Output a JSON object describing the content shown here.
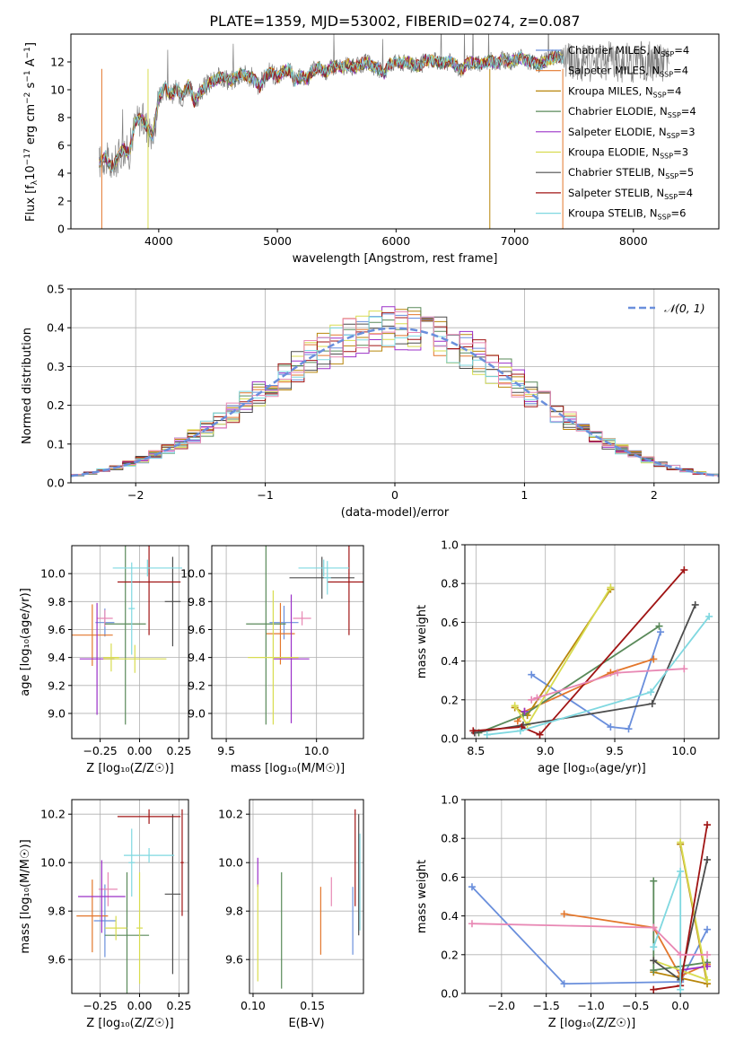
{
  "figure_title": "PLATE=1359, MJD=53002, FIBERID=0274, z=0.087",
  "colors": {
    "Chabrier MILES": "#6a8fdc",
    "Salpeter MILES": "#e3772c",
    "Kroupa MILES": "#b8860b",
    "Chabrier ELODIE": "#5a8a5a",
    "Salpeter ELODIE": "#9b30c8",
    "Kroupa ELODIE": "#d8dc50",
    "Chabrier STELIB": "#4d4d4d",
    "Salpeter STELIB": "#a01414",
    "Kroupa STELIB": "#7fd8e0",
    "pink": "#e888b4",
    "data": "#808080",
    "gauss": "#6a8fdc"
  },
  "chart_data": [
    {
      "id": "spectrum",
      "type": "line",
      "xlabel": "wavelength [Angstrom, rest frame]",
      "ylabel": "Flux [f",
      "ylabel_sub": "λ",
      "ylabel_rest": "10",
      "ylabel_sup1": "−17",
      "ylabel_rest2": " erg cm",
      "ylabel_sup2": "−2",
      "ylabel_rest3": " s",
      "ylabel_sup3": "−1",
      "ylabel_rest4": " A",
      "ylabel_sup4": "−1",
      "ylabel_end": "]",
      "xlim": [
        3260,
        8720
      ],
      "ylim": [
        0,
        14
      ],
      "xticks": [
        4000,
        5000,
        6000,
        7000,
        8000
      ],
      "yticks": [
        0,
        2,
        4,
        6,
        8,
        10,
        12
      ],
      "legend": [
        {
          "name": "Chabrier MILES",
          "n": "4"
        },
        {
          "name": "Salpeter MILES",
          "n": "4"
        },
        {
          "name": "Kroupa MILES",
          "n": "4"
        },
        {
          "name": "Chabrier ELODIE",
          "n": "4"
        },
        {
          "name": "Salpeter ELODIE",
          "n": "3"
        },
        {
          "name": "Kroupa ELODIE",
          "n": "3"
        },
        {
          "name": "Chabrier STELIB",
          "n": "5"
        },
        {
          "name": "Salpeter STELIB",
          "n": "4"
        },
        {
          "name": "Kroupa STELIB",
          "n": "6"
        }
      ],
      "legend_placement": "upper-right",
      "spectrum_points": [
        [
          3500,
          4.8
        ],
        [
          3550,
          5.2
        ],
        [
          3600,
          4.4
        ],
        [
          3650,
          5.0
        ],
        [
          3700,
          5.8
        ],
        [
          3750,
          5.4
        ],
        [
          3800,
          7.6
        ],
        [
          3850,
          8.0
        ],
        [
          3900,
          7.4
        ],
        [
          3950,
          6.6
        ],
        [
          4000,
          9.4
        ],
        [
          4050,
          10.2
        ],
        [
          4100,
          9.6
        ],
        [
          4150,
          10.0
        ],
        [
          4200,
          9.5
        ],
        [
          4250,
          10.4
        ],
        [
          4300,
          9.1
        ],
        [
          4350,
          9.8
        ],
        [
          4400,
          10.3
        ],
        [
          4450,
          10.6
        ],
        [
          4500,
          10.8
        ],
        [
          4550,
          11.0
        ],
        [
          4600,
          10.6
        ],
        [
          4650,
          10.9
        ],
        [
          4700,
          11.2
        ],
        [
          4750,
          11.0
        ],
        [
          4800,
          10.8
        ],
        [
          4850,
          10.2
        ],
        [
          4900,
          11.0
        ],
        [
          4950,
          11.3
        ],
        [
          5000,
          10.9
        ],
        [
          5050,
          11.3
        ],
        [
          5100,
          11.5
        ],
        [
          5150,
          10.6
        ],
        [
          5200,
          11.0
        ],
        [
          5250,
          10.8
        ],
        [
          5300,
          11.4
        ],
        [
          5350,
          11.6
        ],
        [
          5400,
          11.2
        ],
        [
          5450,
          11.6
        ],
        [
          5500,
          11.7
        ],
        [
          5550,
          11.6
        ],
        [
          5600,
          11.8
        ],
        [
          5650,
          11.6
        ],
        [
          5700,
          11.8
        ],
        [
          5750,
          12.0
        ],
        [
          5800,
          11.7
        ],
        [
          5850,
          11.5
        ],
        [
          5900,
          11.2
        ],
        [
          5950,
          11.9
        ],
        [
          6000,
          12.0
        ],
        [
          6050,
          11.9
        ],
        [
          6100,
          12.0
        ],
        [
          6150,
          11.8
        ],
        [
          6200,
          11.7
        ],
        [
          6250,
          12.1
        ],
        [
          6300,
          12.1
        ],
        [
          6350,
          12.0
        ],
        [
          6400,
          11.9
        ],
        [
          6450,
          12.0
        ],
        [
          6500,
          11.8
        ],
        [
          6550,
          11.4
        ],
        [
          6600,
          11.9
        ],
        [
          6650,
          12.0
        ],
        [
          6700,
          11.8
        ],
        [
          6750,
          12.0
        ],
        [
          6800,
          12.1
        ],
        [
          6850,
          11.9
        ],
        [
          6900,
          12.2
        ],
        [
          6950,
          12.0
        ],
        [
          7000,
          12.1
        ],
        [
          7050,
          12.3
        ],
        [
          7100,
          12.1
        ],
        [
          7150,
          12.0
        ],
        [
          7200,
          11.8
        ],
        [
          7250,
          12.0
        ],
        [
          7300,
          12.2
        ],
        [
          7350,
          12.4
        ],
        [
          7400,
          12.3
        ]
      ]
    },
    {
      "id": "residuals",
      "type": "histogram",
      "xlabel": "(data-model)/error",
      "ylabel": "Normed distribution",
      "xlim": [
        -2.5,
        2.5
      ],
      "ylim": [
        0,
        0.5
      ],
      "xticks": [
        -2,
        -1,
        0,
        1,
        2
      ],
      "xticklabels": [
        "−2",
        "−1",
        "0",
        "1",
        "2"
      ],
      "yticks": [
        0.0,
        0.1,
        0.2,
        0.3,
        0.4,
        0.5
      ],
      "yticklabels": [
        "0.0",
        "0.1",
        "0.2",
        "0.3",
        "0.4",
        "0.5"
      ],
      "legend": [
        {
          "name": "𝒩(0, 1)"
        }
      ],
      "legend_placement": "upper-right",
      "bin_width": 0.1
    },
    {
      "id": "age-vs-Z",
      "type": "errorbar",
      "xlabel": "Z [log₁₀(Z/Z☉)]",
      "ylabel": "age  [log₁₀(age/yr)]",
      "xlim": [
        -0.43,
        0.31
      ],
      "ylim": [
        8.82,
        10.2
      ],
      "xticks": [
        -0.25,
        0.0,
        0.25
      ],
      "xticklabels": [
        "−0.25",
        "0.00",
        "0.25"
      ],
      "yticks": [
        9.0,
        9.2,
        9.4,
        9.6,
        9.8,
        10.0
      ],
      "yticklabels": [
        "9.0",
        "9.2",
        "9.4",
        "9.6",
        "9.8",
        "10.0"
      ]
    },
    {
      "id": "age-vs-mass",
      "type": "errorbar",
      "xlabel": "mass [log₁₀(M/M☉)]",
      "ylim": [
        8.82,
        10.2
      ],
      "xlim": [
        9.42,
        10.26
      ],
      "xticks": [
        9.5,
        10.0
      ],
      "xticklabels": [
        "9.5",
        "10.0"
      ],
      "yticks": [
        9.0,
        9.2,
        9.4,
        9.6,
        9.8,
        10.0
      ],
      "yticklabels": [
        "9.0",
        "9.2",
        "9.4",
        "9.6",
        "9.8",
        "10.0"
      ]
    },
    {
      "id": "weight-vs-age",
      "type": "line",
      "xlabel": "age  [log₁₀(age/yr)]",
      "ylabel": "mass weight",
      "xlim": [
        8.42,
        10.25
      ],
      "ylim": [
        0,
        1
      ],
      "xticks": [
        8.5,
        9.0,
        9.5,
        10.0
      ],
      "xticklabels": [
        "8.5",
        "9.0",
        "9.5",
        "10.0"
      ],
      "yticks": [
        0,
        0.2,
        0.4,
        0.6,
        0.8,
        1.0
      ],
      "yticklabels": [
        "0.0",
        "0.2",
        "0.4",
        "0.6",
        "0.8",
        "1.0"
      ]
    },
    {
      "id": "mass-vs-Z",
      "type": "errorbar",
      "xlabel": "Z [log₁₀(Z/Z☉)]",
      "ylabel": "mass [log₁₀(M/M☉)]",
      "xlim": [
        -0.43,
        0.31
      ],
      "ylim": [
        9.46,
        10.26
      ],
      "xticks": [
        -0.25,
        0.0,
        0.25
      ],
      "xticklabels": [
        "−0.25",
        "0.00",
        "0.25"
      ],
      "yticks": [
        9.6,
        9.8,
        10.0,
        10.2
      ],
      "yticklabels": [
        "9.6",
        "9.8",
        "10.0",
        "10.2"
      ]
    },
    {
      "id": "mass-vs-ebv",
      "type": "errorbar",
      "xlabel": "E(B-V)",
      "xlim": [
        0.097,
        0.193
      ],
      "ylim": [
        9.46,
        10.26
      ],
      "xticks": [
        0.1,
        0.15
      ],
      "xticklabels": [
        "0.10",
        "0.15"
      ],
      "yticks": [
        9.6,
        9.8,
        10.0,
        10.2
      ],
      "yticklabels": [
        "9.6",
        "9.8",
        "10.0",
        "10.2"
      ]
    },
    {
      "id": "weight-vs-Z",
      "type": "line",
      "xlabel": "Z [log₁₀(Z/Z☉)]",
      "ylabel": "mass weight",
      "xlim": [
        -2.41,
        0.43
      ],
      "ylim": [
        0,
        1
      ],
      "xticks": [
        -2.0,
        -1.5,
        -1.0,
        -0.5,
        0.0
      ],
      "xticklabels": [
        "−2.0",
        "−1.5",
        "−1.0",
        "−0.5",
        "0.0"
      ],
      "yticks": [
        0,
        0.2,
        0.4,
        0.6,
        0.8,
        1.0
      ],
      "yticklabels": [
        "0.0",
        "0.2",
        "0.4",
        "0.6",
        "0.8",
        "1.0"
      ]
    }
  ],
  "errorbars_age_Z": [
    {
      "c": "Chabrier MILES",
      "x": -0.22,
      "xe": 0.06,
      "y": 9.65,
      "ye": 0.1
    },
    {
      "c": "Salpeter MILES",
      "x": -0.3,
      "xe": 0.13,
      "y": 9.56,
      "ye": 0.22
    },
    {
      "c": "pink",
      "x": -0.22,
      "xe": 0.05,
      "y": 9.68,
      "ye": 0.06
    },
    {
      "c": "Chabrier ELODIE",
      "x": -0.09,
      "xe": 0.13,
      "y": 9.64,
      "ye": 0.72
    },
    {
      "c": "Salpeter ELODIE",
      "x": -0.27,
      "xe": 0.11,
      "y": 9.39,
      "ye": 0.4
    },
    {
      "c": "Kroupa ELODIE",
      "x": -0.18,
      "xe": 0.05,
      "y": 9.4,
      "ye": 0.1
    },
    {
      "c": "Kroupa ELODIE",
      "x": -0.03,
      "xe": 0.2,
      "y": 9.39,
      "ye": 0.1
    },
    {
      "c": "Chabrier STELIB",
      "x": 0.21,
      "xe": 0.05,
      "y": 9.8,
      "ye": 0.32
    },
    {
      "c": "Salpeter STELIB",
      "x": 0.06,
      "xe": 0.2,
      "y": 9.94,
      "ye": 0.38
    },
    {
      "c": "Kroupa STELIB",
      "x": 0.05,
      "xe": 0.22,
      "y": 10.04,
      "ye": 0.06
    },
    {
      "c": "Kroupa STELIB",
      "x": -0.05,
      "xe": 0.02,
      "y": 9.75,
      "ye": 0.33
    }
  ],
  "errorbars_age_mass": [
    {
      "c": "Chabrier MILES",
      "x": 9.82,
      "xe": 0.08,
      "y": 9.65,
      "ye": 0.12
    },
    {
      "c": "Salpeter MILES",
      "x": 9.8,
      "xe": 0.08,
      "y": 9.57,
      "ye": 0.22
    },
    {
      "c": "pink",
      "x": 9.92,
      "xe": 0.05,
      "y": 9.68,
      "ye": 0.05
    },
    {
      "c": "Chabrier ELODIE",
      "x": 9.72,
      "xe": 0.11,
      "y": 9.64,
      "ye": 0.72
    },
    {
      "c": "Salpeter ELODIE",
      "x": 9.86,
      "xe": 0.1,
      "y": 9.39,
      "ye": 0.46
    },
    {
      "c": "Kroupa ELODIE",
      "x": 9.76,
      "xe": 0.14,
      "y": 9.4,
      "ye": 0.48
    },
    {
      "c": "Chabrier STELIB",
      "x": 10.03,
      "xe": 0.18,
      "y": 9.97,
      "ye": 0.15
    },
    {
      "c": "Salpeter STELIB",
      "x": 10.18,
      "xe": 0.12,
      "y": 9.94,
      "ye": 0.38
    },
    {
      "c": "Kroupa STELIB",
      "x": 10.04,
      "xe": 0.14,
      "y": 10.04,
      "ye": 0.06
    },
    {
      "c": "Kroupa STELIB",
      "x": 10.06,
      "xe": 0.02,
      "y": 9.97,
      "ye": 0.12
    }
  ],
  "weights_vs_age": [
    {
      "c": "Chabrier MILES",
      "pts": [
        [
          8.9,
          0.33
        ],
        [
          9.47,
          0.06
        ],
        [
          9.6,
          0.05
        ],
        [
          9.83,
          0.55
        ]
      ]
    },
    {
      "c": "Salpeter MILES",
      "pts": [
        [
          8.8,
          0.09
        ],
        [
          8.85,
          0.14
        ],
        [
          9.47,
          0.34
        ],
        [
          9.78,
          0.41
        ]
      ]
    },
    {
      "c": "Kroupa MILES",
      "pts": [
        [
          8.78,
          0.16
        ],
        [
          8.87,
          0.12
        ],
        [
          9.47,
          0.77
        ]
      ]
    },
    {
      "c": "Chabrier ELODIE",
      "pts": [
        [
          8.52,
          0.03
        ],
        [
          8.84,
          0.12
        ],
        [
          9.82,
          0.58
        ]
      ]
    },
    {
      "c": "Salpeter ELODIE",
      "pts": [
        [
          8.85,
          0.14
        ]
      ]
    },
    {
      "c": "Kroupa ELODIE",
      "pts": [
        [
          8.78,
          0.17
        ],
        [
          8.87,
          0.07
        ],
        [
          9.47,
          0.78
        ]
      ]
    },
    {
      "c": "Chabrier STELIB",
      "pts": [
        [
          8.49,
          0.03
        ],
        [
          8.84,
          0.07
        ],
        [
          9.77,
          0.18
        ],
        [
          10.08,
          0.69
        ]
      ]
    },
    {
      "c": "Salpeter STELIB",
      "pts": [
        [
          8.48,
          0.04
        ],
        [
          8.83,
          0.06
        ],
        [
          8.96,
          0.02
        ],
        [
          10.0,
          0.87
        ]
      ]
    },
    {
      "c": "Kroupa STELIB",
      "pts": [
        [
          8.58,
          0.02
        ],
        [
          8.82,
          0.04
        ],
        [
          9.76,
          0.24
        ],
        [
          10.18,
          0.63
        ]
      ]
    },
    {
      "c": "pink",
      "pts": [
        [
          8.9,
          0.2
        ],
        [
          8.94,
          0.21
        ],
        [
          9.52,
          0.34
        ],
        [
          10.0,
          0.36
        ]
      ]
    }
  ],
  "errorbars_mass_Z": [
    {
      "c": "Chabrier MILES",
      "x": -0.22,
      "xe": 0.07,
      "y": 9.76,
      "ye": 0.15
    },
    {
      "c": "Salpeter MILES",
      "x": -0.3,
      "xe": 0.1,
      "y": 9.78,
      "ye": 0.15
    },
    {
      "c": "pink",
      "x": -0.2,
      "xe": 0.06,
      "y": 9.89,
      "ye": 0.07
    },
    {
      "c": "Chabrier ELODIE",
      "x": -0.08,
      "xe": 0.14,
      "y": 9.7,
      "ye": 0.26
    },
    {
      "c": "Salpeter ELODIE",
      "x": -0.24,
      "xe": 0.15,
      "y": 9.86,
      "ye": 0.15
    },
    {
      "c": "Kroupa ELODIE",
      "x": -0.15,
      "xe": 0.07,
      "y": 9.73,
      "ye": 0.05
    },
    {
      "c": "Kroupa ELODIE",
      "x": 0.0,
      "xe": 0.02,
      "y": 9.73,
      "ye": 0.23
    },
    {
      "c": "Chabrier STELIB",
      "x": 0.21,
      "xe": 0.05,
      "y": 9.87,
      "ye": 0.33
    },
    {
      "c": "Salpeter STELIB",
      "x": 0.06,
      "xe": 0.2,
      "y": 10.19,
      "ye": 0.03
    },
    {
      "c": "Salpeter STELIB",
      "x": 0.27,
      "xe": 0.01,
      "y": 10.0,
      "ye": 0.22
    },
    {
      "c": "Kroupa STELIB",
      "x": 0.06,
      "xe": 0.16,
      "y": 10.03,
      "ye": 0.03
    },
    {
      "c": "Kroupa STELIB",
      "x": -0.05,
      "xe": 0.02,
      "y": 10.0,
      "ye": 0.14
    }
  ],
  "errorbars_mass_ebv": [
    {
      "c": "Salpeter ELODIE",
      "x": 0.104,
      "ye": 0.06,
      "y": 9.96
    },
    {
      "c": "Kroupa ELODIE",
      "x": 0.104,
      "ye": 0.2,
      "y": 9.71
    },
    {
      "c": "Chabrier ELODIE",
      "x": 0.124,
      "ye": 0.24,
      "y": 9.72
    },
    {
      "c": "Salpeter MILES",
      "x": 0.157,
      "ye": 0.14,
      "y": 9.76
    },
    {
      "c": "pink",
      "x": 0.166,
      "ye": 0.06,
      "y": 9.88
    },
    {
      "c": "Chabrier MILES",
      "x": 0.184,
      "ye": 0.14,
      "y": 9.76
    },
    {
      "c": "Salpeter STELIB",
      "x": 0.186,
      "ye": 0.2,
      "y": 10.02
    },
    {
      "c": "Chabrier STELIB",
      "x": 0.189,
      "ye": 0.25,
      "y": 9.95
    },
    {
      "c": "Kroupa STELIB",
      "x": 0.19,
      "ye": 0.2,
      "y": 9.92
    }
  ],
  "weights_vs_Z": [
    {
      "c": "Chabrier MILES",
      "pts": [
        [
          -2.33,
          0.55
        ],
        [
          -1.3,
          0.05
        ],
        [
          0.0,
          0.06
        ],
        [
          0.3,
          0.33
        ]
      ]
    },
    {
      "c": "Salpeter MILES",
      "pts": [
        [
          -1.3,
          0.41
        ],
        [
          -0.3,
          0.34
        ],
        [
          0.0,
          0.09
        ],
        [
          0.3,
          0.15
        ]
      ]
    },
    {
      "c": "Kroupa MILES",
      "pts": [
        [
          0.0,
          0.77
        ],
        [
          0.3,
          0.05
        ],
        [
          -0.3,
          0.11
        ]
      ]
    },
    {
      "c": "Chabrier ELODIE",
      "pts": [
        [
          -0.3,
          0.58
        ],
        [
          -0.3,
          0.12
        ],
        [
          0.3,
          0.16
        ]
      ]
    },
    {
      "c": "Salpeter ELODIE",
      "pts": [
        [
          0.0,
          0.12
        ],
        [
          0.3,
          0.14
        ]
      ]
    },
    {
      "c": "Kroupa ELODIE",
      "pts": [
        [
          0.0,
          0.78
        ],
        [
          0.3,
          0.07
        ],
        [
          -0.3,
          0.17
        ]
      ]
    },
    {
      "c": "Chabrier STELIB",
      "pts": [
        [
          -0.3,
          0.17
        ],
        [
          0.0,
          0.07
        ],
        [
          0.3,
          0.69
        ]
      ]
    },
    {
      "c": "Salpeter STELIB",
      "pts": [
        [
          -0.3,
          0.02
        ],
        [
          0.0,
          0.04
        ],
        [
          0.3,
          0.87
        ]
      ]
    },
    {
      "c": "Kroupa STELIB",
      "pts": [
        [
          -0.3,
          0.24
        ],
        [
          0.0,
          0.63
        ],
        [
          0.0,
          0.02
        ]
      ]
    },
    {
      "c": "pink",
      "pts": [
        [
          -2.33,
          0.36
        ],
        [
          -0.3,
          0.34
        ],
        [
          0.0,
          0.2
        ],
        [
          0.3,
          0.2
        ]
      ]
    }
  ]
}
